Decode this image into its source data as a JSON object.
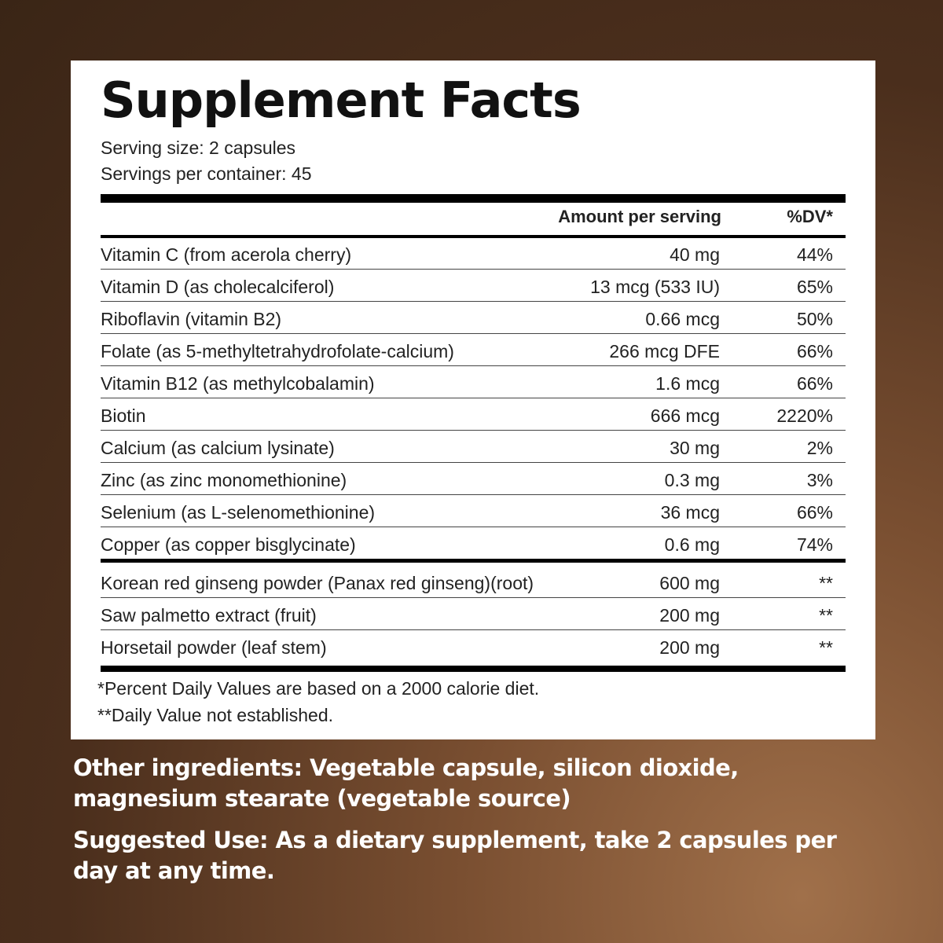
{
  "facts": {
    "title": "Supplement Facts",
    "serving_size": "Serving size: 2 capsules",
    "servings_per_container": "Servings per container: 45",
    "header_amount": "Amount per serving",
    "header_dv": "%DV*",
    "vitamins": [
      {
        "name": "Vitamin C (from acerola cherry)",
        "amount": "40 mg",
        "dv": "44%"
      },
      {
        "name": "Vitamin D (as cholecalciferol)",
        "amount": "13 mcg (533 IU)",
        "dv": "65%"
      },
      {
        "name": "Riboflavin (vitamin B2)",
        "amount": "0.66 mcg",
        "dv": "50%"
      },
      {
        "name": "Folate (as 5-methyltetrahydrofolate-calcium)",
        "amount": "266 mcg DFE",
        "dv": "66%"
      },
      {
        "name": "Vitamin B12 (as methylcobalamin)",
        "amount": "1.6 mcg",
        "dv": "66%"
      },
      {
        "name": "Biotin",
        "amount": "666 mcg",
        "dv": "2220%"
      },
      {
        "name": "Calcium (as calcium lysinate)",
        "amount": "30 mg",
        "dv": "2%"
      },
      {
        "name": "Zinc (as zinc monomethionine)",
        "amount": "0.3 mg",
        "dv": "3%"
      },
      {
        "name": "Selenium (as L-selenomethionine)",
        "amount": "36 mcg",
        "dv": "66%"
      },
      {
        "name": "Copper (as copper bisglycinate)",
        "amount": "0.6 mg",
        "dv": "74%"
      }
    ],
    "botanicals": [
      {
        "name": "Korean red ginseng powder (Panax red ginseng)(root)",
        "amount": "600 mg",
        "dv": "**"
      },
      {
        "name": "Saw palmetto extract (fruit)",
        "amount": "200 mg",
        "dv": "**"
      },
      {
        "name": "Horsetail powder (leaf stem)",
        "amount": "200 mg",
        "dv": "**"
      }
    ],
    "footnote_1": "*Percent Daily Values are based on a 2000 calorie diet.",
    "footnote_2": "**Daily Value not established."
  },
  "other_ingredients": {
    "label": "Other ingredients:",
    "text": " Vegetable capsule, silicon dioxide, magnesium stearate (vegetable source)"
  },
  "suggested_use": {
    "label": "Suggested Use:",
    "text": " As a dietary supplement, take 2 capsules per day at any time."
  }
}
